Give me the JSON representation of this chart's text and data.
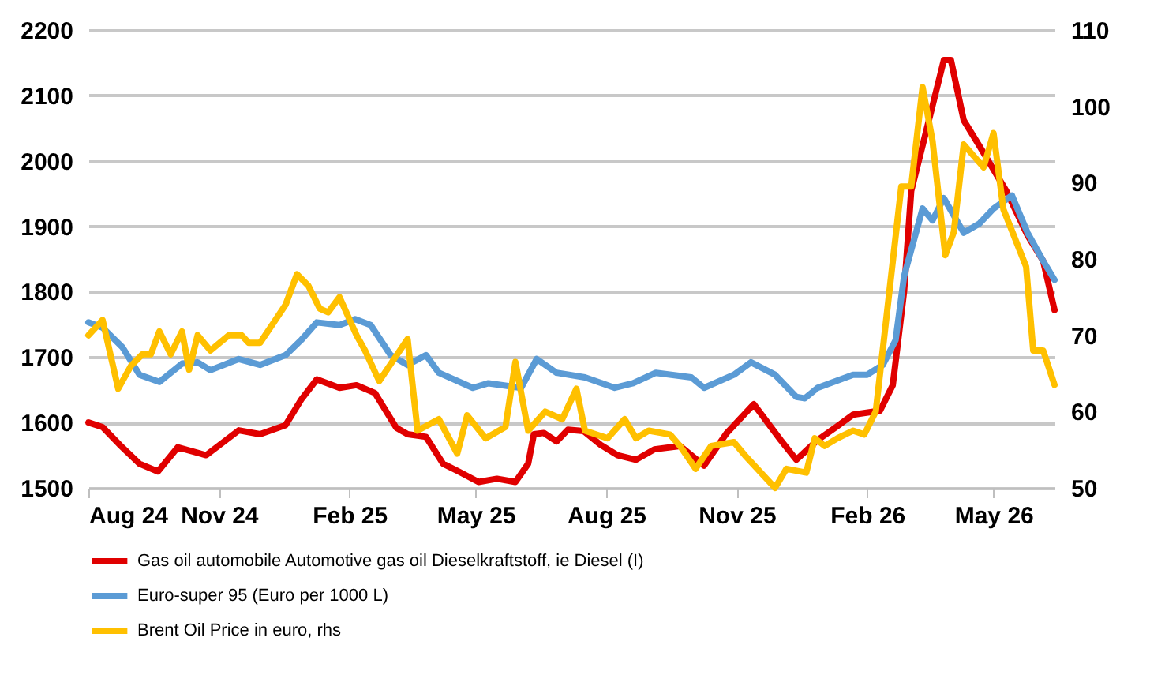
{
  "chart_data": {
    "type": "line",
    "xlim": [
      "2024-08-01",
      "2026-06-13"
    ],
    "xticks": [
      {
        "value": "2024-08-01",
        "label": "Aug 24"
      },
      {
        "value": "2024-11-01",
        "label": "Nov 24"
      },
      {
        "value": "2025-02-01",
        "label": "Feb 25"
      },
      {
        "value": "2025-05-01",
        "label": "May 25"
      },
      {
        "value": "2025-08-01",
        "label": "Aug 25"
      },
      {
        "value": "2025-11-01",
        "label": "Nov 25"
      },
      {
        "value": "2026-02-01",
        "label": "Feb 26"
      },
      {
        "value": "2026-05-01",
        "label": "May 26"
      }
    ],
    "ylim": [
      1500,
      2200
    ],
    "yticks": [
      1500,
      1600,
      1700,
      1800,
      1900,
      2000,
      2100,
      2200
    ],
    "y2lim": [
      50,
      110
    ],
    "y2ticks": [
      50,
      60,
      70,
      80,
      90,
      100,
      110
    ],
    "grid": "y",
    "legend": "bottom",
    "line_style": "solid",
    "marker": "none",
    "series": [
      {
        "name": "Gas oil automobile Automotive gas oil Dieselkraftstoff, ie Diesel (I)",
        "color": "#e00000",
        "x": [
          "2024-08-01",
          "2024-08-11",
          "2024-08-23",
          "2024-09-06",
          "2024-09-19",
          "2024-10-03",
          "2024-10-23",
          "2024-11-15",
          "2024-11-30",
          "2024-12-18",
          "2024-12-29",
          "2025-01-09",
          "2025-01-25",
          "2025-02-06",
          "2025-02-19",
          "2025-03-06",
          "2025-03-14",
          "2025-03-27",
          "2025-04-08",
          "2025-04-19",
          "2025-05-03",
          "2025-05-16",
          "2025-05-29",
          "2025-06-07",
          "2025-06-11",
          "2025-06-18",
          "2025-06-27",
          "2025-07-05",
          "2025-07-16",
          "2025-07-28",
          "2025-08-09",
          "2025-08-22",
          "2025-09-04",
          "2025-09-22",
          "2025-10-09",
          "2025-10-25",
          "2025-11-13",
          "2025-12-02",
          "2025-12-13",
          "2025-12-28",
          "2026-01-10",
          "2026-01-22",
          "2026-02-10",
          "2026-02-19",
          "2026-02-27",
          "2026-03-04",
          "2026-03-19",
          "2026-03-27",
          "2026-04-01",
          "2026-04-10",
          "2026-04-21",
          "2026-05-10",
          "2026-05-25",
          "2026-06-05",
          "2026-06-13"
        ],
        "values": [
          1600,
          1593,
          1566,
          1537,
          1525,
          1562,
          1550,
          1588,
          1582,
          1596,
          1635,
          1666,
          1653,
          1657,
          1645,
          1592,
          1582,
          1578,
          1537,
          1525,
          1509,
          1514,
          1509,
          1537,
          1582,
          1584,
          1571,
          1589,
          1587,
          1566,
          1550,
          1543,
          1559,
          1564,
          1534,
          1584,
          1628,
          1573,
          1543,
          1573,
          1593,
          1612,
          1618,
          1657,
          1801,
          1954,
          2084,
          2154,
          2154,
          2062,
          2023,
          1954,
          1886,
          1847,
          1772
        ]
      },
      {
        "name": "Euro-super 95 (Euro per 1000 L)",
        "color": "#5b9bd5",
        "x": [
          "2024-08-01",
          "2024-08-11",
          "2024-08-25",
          "2024-09-06",
          "2024-09-20",
          "2024-10-06",
          "2024-10-17",
          "2024-10-26",
          "2024-11-15",
          "2024-11-30",
          "2024-12-18",
          "2024-12-29",
          "2025-01-09",
          "2025-01-25",
          "2025-02-05",
          "2025-02-16",
          "2025-03-02",
          "2025-03-14",
          "2025-03-27",
          "2025-04-05",
          "2025-04-29",
          "2025-05-10",
          "2025-06-02",
          "2025-06-13",
          "2025-06-27",
          "2025-07-17",
          "2025-08-07",
          "2025-08-20",
          "2025-09-05",
          "2025-09-30",
          "2025-10-09",
          "2025-10-30",
          "2025-11-11",
          "2025-11-28",
          "2025-12-13",
          "2025-12-19",
          "2025-12-28",
          "2026-01-22",
          "2026-02-01",
          "2026-02-12",
          "2026-02-21",
          "2026-02-27",
          "2026-03-12",
          "2026-03-19",
          "2026-03-27",
          "2026-04-10",
          "2026-04-21",
          "2026-05-01",
          "2026-05-14",
          "2026-05-25",
          "2026-06-05",
          "2026-06-13"
        ],
        "values": [
          1753,
          1745,
          1715,
          1673,
          1662,
          1690,
          1692,
          1680,
          1697,
          1688,
          1703,
          1726,
          1753,
          1749,
          1758,
          1749,
          1703,
          1688,
          1703,
          1676,
          1653,
          1660,
          1653,
          1697,
          1676,
          1669,
          1653,
          1660,
          1676,
          1669,
          1653,
          1673,
          1692,
          1673,
          1639,
          1637,
          1653,
          1673,
          1673,
          1688,
          1726,
          1824,
          1927,
          1909,
          1943,
          1890,
          1904,
          1927,
          1947,
          1890,
          1847,
          1818
        ]
      },
      {
        "name": "Brent Oil Price in euro, rhs",
        "color": "#ffc000",
        "axis": "y2",
        "x": [
          "2024-08-01",
          "2024-08-11",
          "2024-08-22",
          "2024-08-31",
          "2024-09-08",
          "2024-09-14",
          "2024-09-20",
          "2024-09-28",
          "2024-10-06",
          "2024-10-11",
          "2024-10-17",
          "2024-10-26",
          "2024-11-08",
          "2024-11-17",
          "2024-11-22",
          "2024-11-30",
          "2024-12-09",
          "2024-12-18",
          "2024-12-26",
          "2025-01-03",
          "2025-01-11",
          "2025-01-17",
          "2025-01-25",
          "2025-02-06",
          "2025-02-12",
          "2025-02-22",
          "2025-03-14",
          "2025-03-21",
          "2025-04-05",
          "2025-04-18",
          "2025-04-25",
          "2025-05-08",
          "2025-05-22",
          "2025-05-29",
          "2025-06-07",
          "2025-06-19",
          "2025-07-01",
          "2025-07-11",
          "2025-07-17",
          "2025-08-02",
          "2025-08-14",
          "2025-08-22",
          "2025-08-31",
          "2025-09-15",
          "2025-09-22",
          "2025-10-03",
          "2025-10-14",
          "2025-10-30",
          "2025-11-08",
          "2025-11-28",
          "2025-12-06",
          "2025-12-20",
          "2025-12-26",
          "2026-01-02",
          "2026-01-11",
          "2026-01-22",
          "2026-01-30",
          "2026-02-07",
          "2026-02-25",
          "2026-03-04",
          "2026-03-12",
          "2026-03-19",
          "2026-03-28",
          "2026-04-03",
          "2026-04-10",
          "2026-04-24",
          "2026-05-01",
          "2026-05-08",
          "2026-05-24",
          "2026-05-29",
          "2026-06-05",
          "2026-06-13"
        ],
        "values": [
          70,
          72,
          63,
          66,
          67.5,
          67.5,
          70.5,
          67.5,
          70.5,
          65.5,
          70,
          68,
          70,
          70,
          69,
          69,
          71.5,
          74,
          78,
          76.5,
          73.5,
          73,
          75,
          70,
          68,
          64,
          69.5,
          57.5,
          59,
          54.5,
          59.5,
          56.5,
          58,
          66.5,
          57.5,
          60,
          59,
          63,
          57.5,
          56.5,
          59,
          56.5,
          57.5,
          57,
          55.5,
          52.5,
          55.5,
          56,
          54,
          50,
          52.5,
          52,
          56.5,
          55.5,
          56.5,
          57.5,
          57,
          60,
          89.5,
          89.5,
          102.5,
          95.5,
          80.5,
          83.5,
          95,
          92,
          96.5,
          86.5,
          79,
          68,
          68,
          63.5
        ]
      }
    ]
  }
}
